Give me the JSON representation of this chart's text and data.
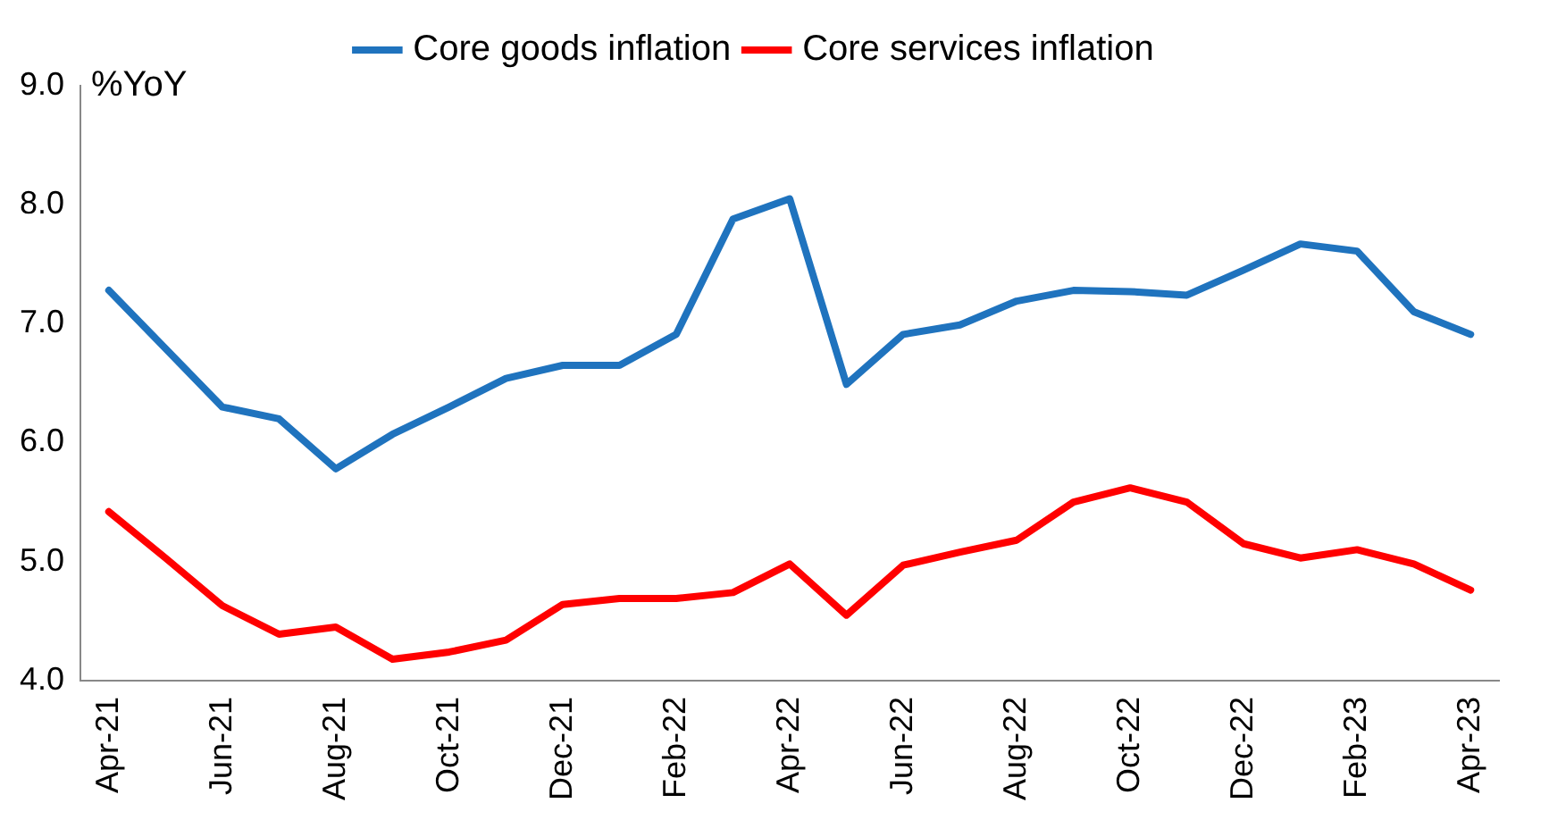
{
  "chart_data": {
    "type": "line",
    "ylabel": "%YoY",
    "categories": [
      "Apr-21",
      null,
      "Jun-21",
      null,
      "Aug-21",
      null,
      "Oct-21",
      null,
      "Dec-21",
      null,
      "Feb-22",
      null,
      "Apr-22",
      null,
      "Jun-22",
      null,
      "Aug-22",
      null,
      "Oct-22",
      null,
      "Dec-22",
      null,
      "Feb-23",
      null,
      "Apr-23"
    ],
    "series": [
      {
        "name": "Core goods inflation",
        "color": "#1f73be",
        "values": [
          7.28,
          6.79,
          6.3,
          6.2,
          5.78,
          6.07,
          6.3,
          6.54,
          6.65,
          6.65,
          6.91,
          7.88,
          8.05,
          6.49,
          6.91,
          6.99,
          7.19,
          7.28,
          7.27,
          7.24,
          7.45,
          7.67,
          7.61,
          7.1,
          6.91
        ]
      },
      {
        "name": "Core services inflation",
        "color": "#ff0000",
        "values": [
          5.42,
          5.03,
          4.63,
          4.39,
          4.45,
          4.18,
          4.24,
          4.34,
          4.64,
          4.69,
          4.69,
          4.74,
          4.98,
          4.55,
          4.97,
          5.08,
          5.18,
          5.5,
          5.62,
          5.5,
          5.15,
          5.03,
          5.1,
          4.98,
          4.76
        ]
      }
    ],
    "ylim": [
      4,
      9
    ],
    "yticks": [
      {
        "value": 4,
        "label": "4.0"
      },
      {
        "value": 5,
        "label": "5.0"
      },
      {
        "value": 6,
        "label": "6.0"
      },
      {
        "value": 7,
        "label": "7.0"
      },
      {
        "value": 8,
        "label": "8.0"
      },
      {
        "value": 9,
        "label": "9.0"
      }
    ],
    "grid": false,
    "legend": "top",
    "marker": "none",
    "line_style": "solid"
  }
}
